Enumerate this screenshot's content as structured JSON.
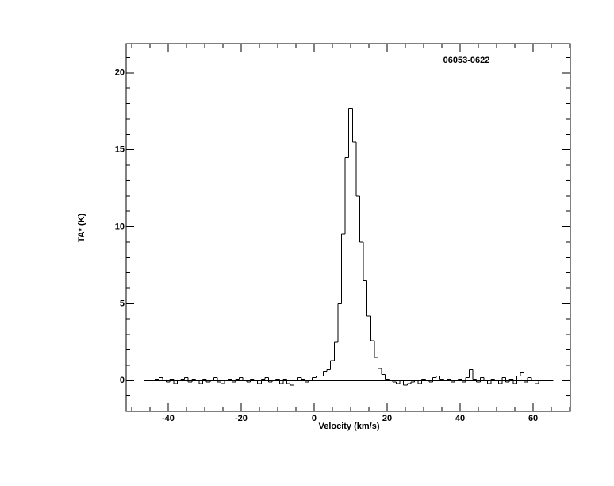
{
  "chart_data": {
    "type": "step",
    "title": "06053-0622",
    "xlabel": "Velocity (km/s)",
    "ylabel": "TA* (K)",
    "x": [
      -43,
      -42,
      -41,
      -40,
      -39,
      -38,
      -37,
      -36,
      -35,
      -34,
      -33,
      -32,
      -31,
      -30,
      -29,
      -28,
      -27,
      -26,
      -25,
      -24,
      -23,
      -22,
      -21,
      -20,
      -19,
      -18,
      -17,
      -16,
      -15,
      -14,
      -13,
      -12,
      -11,
      -10,
      -9,
      -8,
      -7,
      -6,
      -5,
      -4,
      -3,
      -2,
      -1,
      0,
      1,
      2,
      3,
      4,
      5,
      6,
      7,
      8,
      9,
      10,
      11,
      12,
      13,
      14,
      15,
      16,
      17,
      18,
      19,
      20,
      21,
      22,
      23,
      24,
      25,
      26,
      27,
      28,
      29,
      30,
      31,
      32,
      33,
      34,
      35,
      36,
      37,
      38,
      39,
      40,
      41,
      42,
      43,
      44,
      45,
      46,
      47,
      48,
      49,
      50,
      51,
      52,
      53,
      54,
      55,
      56,
      57,
      58,
      59,
      60,
      61,
      62
    ],
    "values": [
      0.1,
      0.2,
      0.0,
      -0.1,
      0.1,
      -0.2,
      0.0,
      0.1,
      0.2,
      -0.1,
      0.1,
      0.0,
      -0.2,
      0.1,
      -0.1,
      0.0,
      0.2,
      -0.1,
      -0.2,
      0.0,
      0.1,
      -0.1,
      0.1,
      0.2,
      0.0,
      -0.1,
      0.1,
      0.0,
      -0.2,
      0.1,
      0.2,
      -0.1,
      0.0,
      0.1,
      -0.2,
      0.1,
      -0.2,
      -0.3,
      0.0,
      0.2,
      0.1,
      -0.1,
      0.0,
      0.2,
      0.3,
      0.3,
      0.6,
      0.7,
      1.3,
      2.5,
      5.0,
      9.5,
      14.5,
      17.7,
      15.5,
      12.0,
      9.0,
      6.5,
      4.2,
      2.6,
      1.5,
      0.8,
      0.4,
      0.1,
      0.0,
      -0.1,
      -0.2,
      0.0,
      -0.3,
      -0.2,
      -0.1,
      0.0,
      -0.2,
      0.1,
      0.0,
      -0.1,
      0.2,
      0.3,
      0.1,
      0.0,
      0.1,
      -0.1,
      0.0,
      0.1,
      -0.1,
      0.2,
      0.7,
      0.1,
      -0.1,
      0.2,
      0.0,
      -0.2,
      0.1,
      0.0,
      -0.2,
      0.2,
      -0.1,
      0.1,
      -0.2,
      0.3,
      0.5,
      -0.1,
      0.2,
      0.0,
      -0.2,
      0.0
    ],
    "color": "#000000",
    "baseline": 0,
    "xlim": [
      -51.5,
      70.2
    ],
    "xticks": [
      -40,
      -20,
      0,
      20,
      40,
      60
    ],
    "xminor": 5,
    "ylim": [
      -2,
      21.9
    ],
    "yticks": [
      0,
      5,
      10,
      15,
      20
    ],
    "yminor": 1
  }
}
